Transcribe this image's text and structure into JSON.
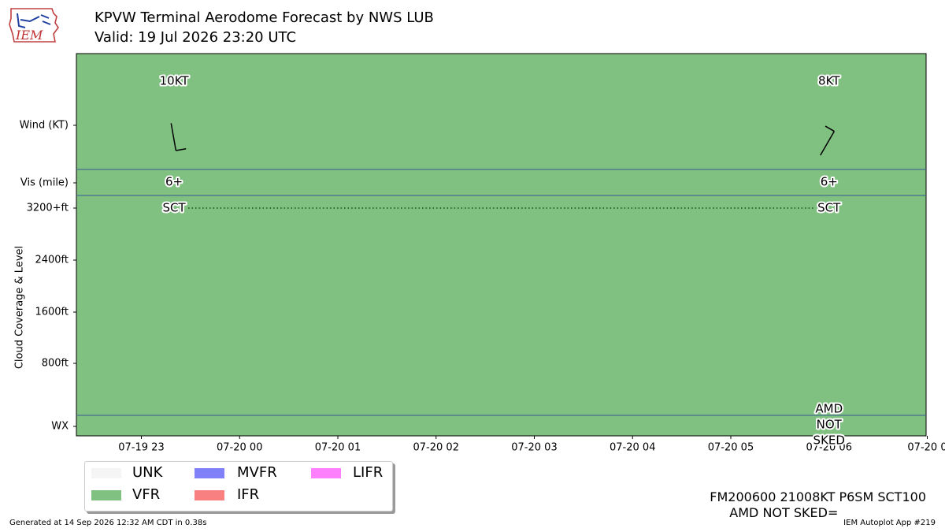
{
  "header": {
    "title_line1": "KPVW Terminal Aerodome Forecast by NWS LUB",
    "title_line2": "Valid: 19 Jul 2026 23:20 UTC",
    "logo_text": "IEM"
  },
  "chart_data": {
    "type": "timeline",
    "x_tick_labels": [
      "07-19 23",
      "07-20 00",
      "07-20 01",
      "07-20 02",
      "07-20 03",
      "07-20 04",
      "07-20 05",
      "07-20 06",
      "07-20 0"
    ],
    "y_rows": {
      "wind_label": "Wind (KT)",
      "vis_label": "Vis (mile)",
      "wx_label": "WX",
      "cloud_axis_title": "Cloud Coverage & Level",
      "cloud_ticks": [
        "3200+ft",
        "2400ft",
        "1600ft",
        "800ft"
      ]
    },
    "category_color": "#80c080",
    "category": "VFR",
    "forecasts": [
      {
        "time": "07-19 23:20",
        "wind_label": "10KT",
        "wind_dir_deg": 350,
        "wind_speed_kt": 10,
        "vis_label": "6+",
        "cloud_label": "SCT",
        "wx_lines": []
      },
      {
        "time": "07-20 06:00",
        "wind_label": "8KT",
        "wind_dir_deg": 210,
        "wind_speed_kt": 8,
        "vis_label": "6+",
        "cloud_label": "SCT",
        "wx_lines": [
          "AMD",
          "NOT",
          "SKED"
        ]
      }
    ]
  },
  "legend": {
    "items": [
      {
        "label": "UNK",
        "color": "#f5f5f5"
      },
      {
        "label": "MVFR",
        "color": "#8080f8"
      },
      {
        "label": "LIFR",
        "color": "#ff80ff"
      },
      {
        "label": "VFR",
        "color": "#80c080"
      },
      {
        "label": "IFR",
        "color": "#f88080"
      }
    ]
  },
  "raw_taf": {
    "line1": "FM200600 21008KT P6SM SCT100",
    "line2": "AMD NOT SKED="
  },
  "footer": {
    "left": "Generated at 14 Sep 2026 12:32 AM CDT in 0.38s",
    "right": "IEM Autoplot App #219"
  }
}
